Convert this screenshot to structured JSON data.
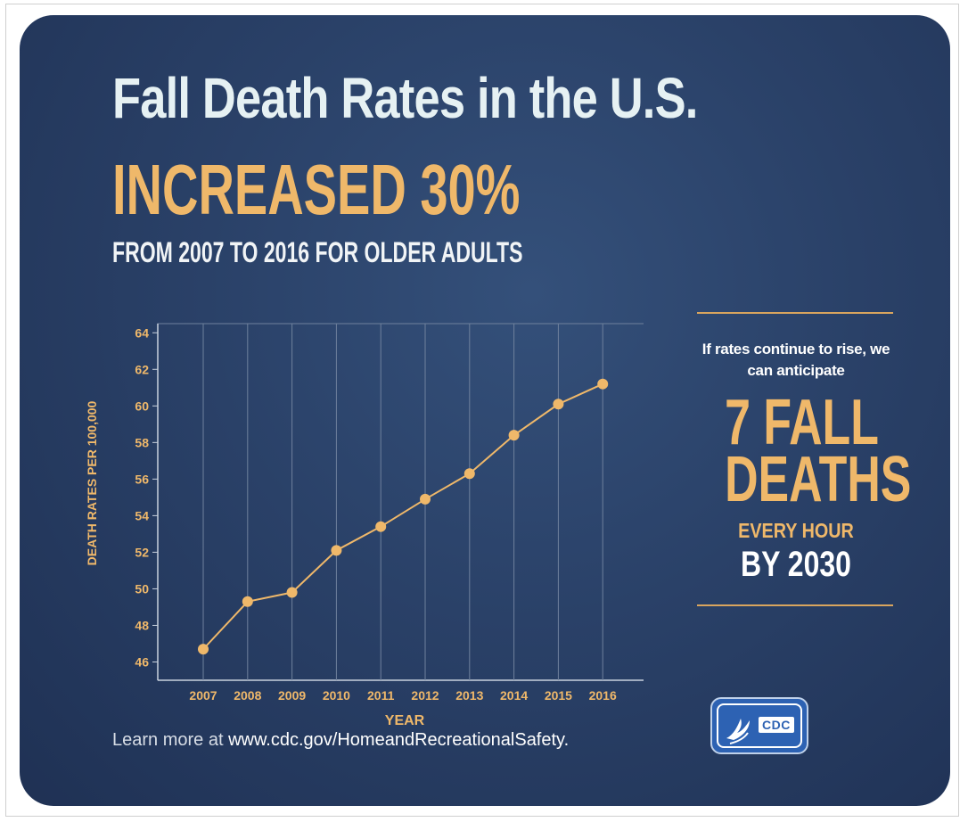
{
  "header": {
    "title": "Fall Death Rates in the U.S.",
    "headline": "INCREASED 30%",
    "subtitle": "FROM 2007 TO 2016 FOR OLDER ADULTS"
  },
  "chart_data": {
    "type": "line",
    "x": [
      2007,
      2008,
      2009,
      2010,
      2011,
      2012,
      2013,
      2014,
      2015,
      2016
    ],
    "categories": [
      "2007",
      "2008",
      "2009",
      "2010",
      "2011",
      "2012",
      "2013",
      "2014",
      "2015",
      "2016"
    ],
    "series": [
      {
        "values": [
          46.7,
          49.3,
          49.8,
          52.1,
          53.4,
          54.9,
          56.3,
          58.4,
          60.1,
          61.2
        ]
      }
    ],
    "xlabel": "YEAR",
    "ylabel": "DEATH RATES PER 100,000",
    "ylim": [
      45,
      64.5
    ],
    "yticks": [
      46,
      48,
      50,
      52,
      54,
      56,
      58,
      60,
      62,
      64
    ],
    "grid": "vertical",
    "color": "#efb86a"
  },
  "callout": {
    "lead": "If rates continue to rise, we can anticipate",
    "big_line1": "7 FALL",
    "big_line2": "DEATHS",
    "every_hour": "EVERY HOUR",
    "by_year": "BY 2030"
  },
  "footer": {
    "learn_prefix": "Learn more at ",
    "learn_url": "www.cdc.gov/HomeandRecreationalSafety."
  },
  "logo": {
    "text": "CDC",
    "icon": "hhs-eagle-icon"
  },
  "colors": {
    "background": "#2a4168",
    "accent": "#efb86a",
    "title_text": "#e6f1f3"
  }
}
